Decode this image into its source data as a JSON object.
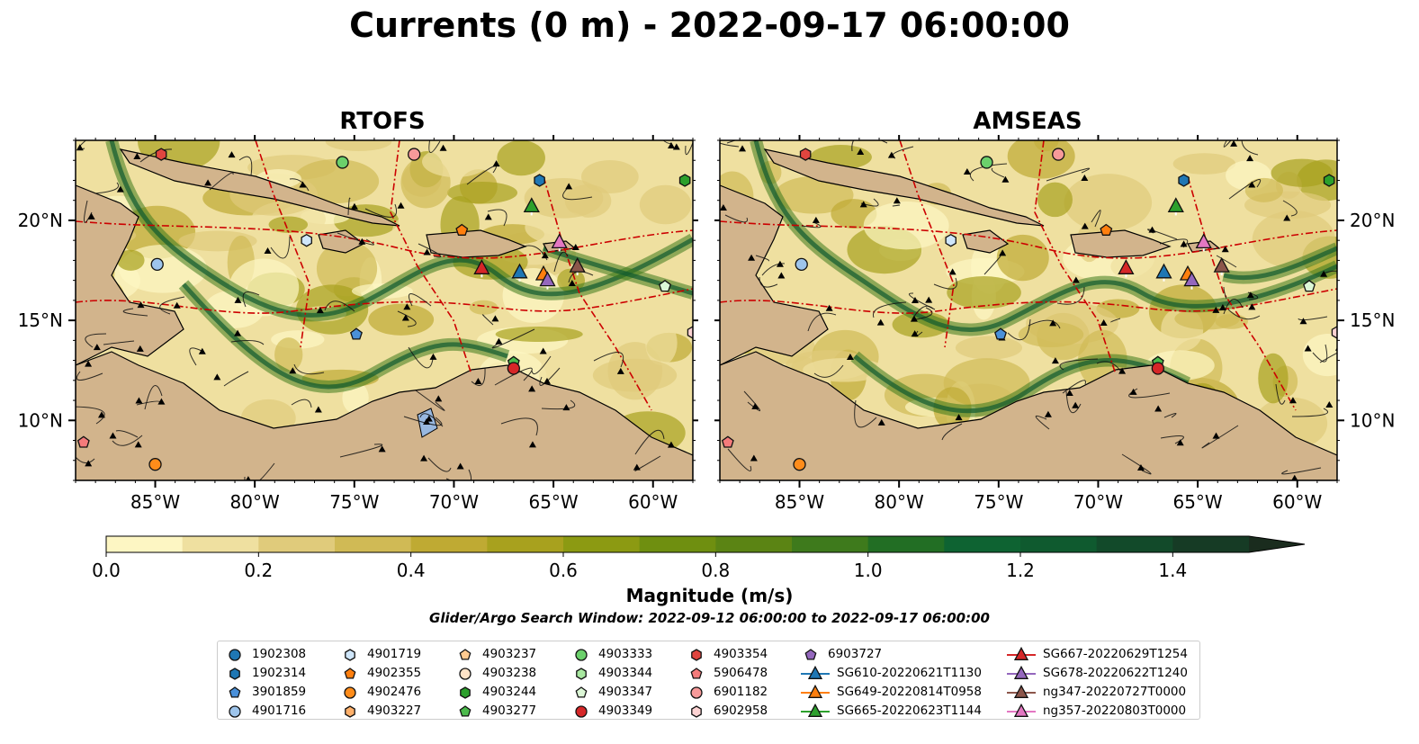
{
  "title": "Currents (0 m) - 2022-09-17 06:00:00",
  "panels": [
    {
      "id": "rtofs",
      "title": "RTOFS"
    },
    {
      "id": "amseas",
      "title": "AMSEAS"
    }
  ],
  "colors": {
    "land": "#d2b48c",
    "water": "#98b8e0",
    "contour_line": "#cc0000",
    "colormap": [
      "#fdf6c3",
      "#efe0a0",
      "#e0cb7b",
      "#d0ba55",
      "#bfaa33",
      "#a8a11e",
      "#8c9a12",
      "#6f8f10",
      "#5b8414",
      "#3e7a1c",
      "#226e24",
      "#0e6332",
      "#0f5a2f",
      "#124a2a",
      "#163b25",
      "#1a2c1e"
    ]
  },
  "axes": {
    "x_ticks": [
      "85°W",
      "80°W",
      "75°W",
      "70°W",
      "65°W",
      "60°W"
    ],
    "y_ticks": [
      "10°N",
      "15°N",
      "20°N"
    ]
  },
  "colorbar": {
    "ticks": [
      "0.0",
      "0.2",
      "0.4",
      "0.6",
      "0.8",
      "1.0",
      "1.2",
      "1.4"
    ],
    "label": "Magnitude (m/s)",
    "range": [
      0.0,
      1.5
    ],
    "extend": "max"
  },
  "search_window": "Glider/Argo Search Window: 2022-09-12 06:00:00 to 2022-09-17 06:00:00",
  "legend": {
    "columns": [
      [
        {
          "label": "1902308",
          "marker": "circle",
          "color": "#1f77b4"
        },
        {
          "label": "1902314",
          "marker": "hexagon",
          "color": "#1f77b4"
        },
        {
          "label": "3901859",
          "marker": "pentagon",
          "color": "#4a90d9"
        },
        {
          "label": "4901716",
          "marker": "circle",
          "color": "#9ec5ec"
        }
      ],
      [
        {
          "label": "4901719",
          "marker": "hexagon",
          "color": "#cfe6fa"
        },
        {
          "label": "4902355",
          "marker": "pentagon",
          "color": "#ff7f0e"
        },
        {
          "label": "4902476",
          "marker": "circle",
          "color": "#ff8c1a"
        },
        {
          "label": "4903227",
          "marker": "hexagon",
          "color": "#ffb06a"
        }
      ],
      [
        {
          "label": "4903237",
          "marker": "pentagon",
          "color": "#ffca90"
        },
        {
          "label": "4903238",
          "marker": "circle",
          "color": "#ffe3c7"
        },
        {
          "label": "4903244",
          "marker": "hexagon",
          "color": "#2ca02c"
        },
        {
          "label": "4903277",
          "marker": "pentagon",
          "color": "#4cba4c"
        }
      ],
      [
        {
          "label": "4903333",
          "marker": "circle",
          "color": "#6bd06b"
        },
        {
          "label": "4903344",
          "marker": "hexagon",
          "color": "#a8e8a0"
        },
        {
          "label": "4903347",
          "marker": "pentagon",
          "color": "#dcf7d6"
        },
        {
          "label": "4903349",
          "marker": "circle",
          "color": "#d62728"
        }
      ],
      [
        {
          "label": "4903354",
          "marker": "hexagon",
          "color": "#e0453f"
        },
        {
          "label": "5906478",
          "marker": "pentagon",
          "color": "#f47b7b"
        },
        {
          "label": "6901182",
          "marker": "circle",
          "color": "#f79a9a"
        },
        {
          "label": "6902958",
          "marker": "hexagon",
          "color": "#fcd2d2"
        }
      ],
      [
        {
          "label": "6903727",
          "marker": "pentagon",
          "color": "#9467bd"
        },
        {
          "label": "SG610-20220621T1130",
          "marker": "triangle-line",
          "color": "#1f77b4"
        },
        {
          "label": "SG649-20220814T0958",
          "marker": "triangle-line",
          "color": "#ff7f0e"
        },
        {
          "label": "SG665-20220623T1144",
          "marker": "triangle-line",
          "color": "#2ca02c"
        }
      ],
      [
        {
          "label": "SG667-20220629T1254",
          "marker": "triangle-line",
          "color": "#d62728"
        },
        {
          "label": "SG678-20220622T1240",
          "marker": "triangle-line",
          "color": "#9467bd"
        },
        {
          "label": "ng347-20220727T0000",
          "marker": "triangle-line",
          "color": "#8c564b"
        },
        {
          "label": "ng357-20220803T0000",
          "marker": "triangle-line",
          "color": "#e377c2"
        }
      ]
    ]
  },
  "chart_data": [
    {
      "type": "map",
      "title": "RTOFS",
      "xlim": [
        -89,
        -58
      ],
      "ylim": [
        7,
        24
      ],
      "x_ticks": [
        -85,
        -80,
        -75,
        -70,
        -65,
        -60
      ],
      "y_ticks": [
        10,
        15,
        20
      ],
      "markers": [
        {
          "label": "4903354",
          "lon": -84.7,
          "lat": 23.3
        },
        {
          "label": "4903333",
          "lon": -75.6,
          "lat": 22.9
        },
        {
          "label": "6901182",
          "lon": -72.0,
          "lat": 23.3
        },
        {
          "label": "1902314",
          "lon": -65.7,
          "lat": 22.0
        },
        {
          "label": "4903244",
          "lon": -58.4,
          "lat": 22.0
        },
        {
          "label": "SG665-20220623T1144",
          "lon": -66.1,
          "lat": 20.7
        },
        {
          "label": "4902355",
          "lon": -69.6,
          "lat": 19.5
        },
        {
          "label": "4901719",
          "lon": -77.4,
          "lat": 19.0
        },
        {
          "label": "4901716",
          "lon": -84.9,
          "lat": 17.8
        },
        {
          "label": "ng357-20220803T0000",
          "lon": -64.7,
          "lat": 18.9
        },
        {
          "label": "SG667-20220629T1254",
          "lon": -68.6,
          "lat": 17.6
        },
        {
          "label": "SG610-20220621T1130",
          "lon": -66.7,
          "lat": 17.4
        },
        {
          "label": "SG649-20220814T0958",
          "lon": -65.5,
          "lat": 17.3
        },
        {
          "label": "SG678-20220622T1240",
          "lon": -65.3,
          "lat": 17.0
        },
        {
          "label": "ng347-20220727T0000",
          "lon": -63.8,
          "lat": 17.7
        },
        {
          "label": "4903347",
          "lon": -59.4,
          "lat": 16.7
        },
        {
          "label": "3901859",
          "lon": -74.9,
          "lat": 14.3
        },
        {
          "label": "6902958",
          "lon": -58.0,
          "lat": 14.4
        },
        {
          "label": "4903277",
          "lon": -67.0,
          "lat": 12.9
        },
        {
          "label": "4903349",
          "lon": -67.0,
          "lat": 12.6
        },
        {
          "label": "5906478",
          "lon": -88.6,
          "lat": 8.9
        },
        {
          "label": "4902476",
          "lon": -85.0,
          "lat": 7.8
        }
      ]
    },
    {
      "type": "map",
      "title": "AMSEAS",
      "xlim": [
        -89,
        -58
      ],
      "ylim": [
        7,
        24
      ],
      "x_ticks": [
        -85,
        -80,
        -75,
        -70,
        -65,
        -60
      ],
      "y_ticks": [
        10,
        15,
        20
      ],
      "markers": [
        {
          "label": "4903354",
          "lon": -84.7,
          "lat": 23.3
        },
        {
          "label": "4903333",
          "lon": -75.6,
          "lat": 22.9
        },
        {
          "label": "6901182",
          "lon": -72.0,
          "lat": 23.3
        },
        {
          "label": "1902314",
          "lon": -65.7,
          "lat": 22.0
        },
        {
          "label": "4903244",
          "lon": -58.4,
          "lat": 22.0
        },
        {
          "label": "SG665-20220623T1144",
          "lon": -66.1,
          "lat": 20.7
        },
        {
          "label": "4902355",
          "lon": -69.6,
          "lat": 19.5
        },
        {
          "label": "4901719",
          "lon": -77.4,
          "lat": 19.0
        },
        {
          "label": "4901716",
          "lon": -84.9,
          "lat": 17.8
        },
        {
          "label": "ng357-20220803T0000",
          "lon": -64.7,
          "lat": 18.9
        },
        {
          "label": "SG667-20220629T1254",
          "lon": -68.6,
          "lat": 17.6
        },
        {
          "label": "SG610-20220621T1130",
          "lon": -66.7,
          "lat": 17.4
        },
        {
          "label": "SG649-20220814T0958",
          "lon": -65.5,
          "lat": 17.3
        },
        {
          "label": "SG678-20220622T1240",
          "lon": -65.3,
          "lat": 17.0
        },
        {
          "label": "ng347-20220727T0000",
          "lon": -63.8,
          "lat": 17.7
        },
        {
          "label": "4903347",
          "lon": -59.4,
          "lat": 16.7
        },
        {
          "label": "3901859",
          "lon": -74.9,
          "lat": 14.3
        },
        {
          "label": "6902958",
          "lon": -58.0,
          "lat": 14.4
        },
        {
          "label": "4903277",
          "lon": -67.0,
          "lat": 12.9
        },
        {
          "label": "4903349",
          "lon": -67.0,
          "lat": 12.6
        },
        {
          "label": "5906478",
          "lon": -88.6,
          "lat": 8.9
        },
        {
          "label": "4902476",
          "lon": -85.0,
          "lat": 7.8
        }
      ]
    }
  ]
}
